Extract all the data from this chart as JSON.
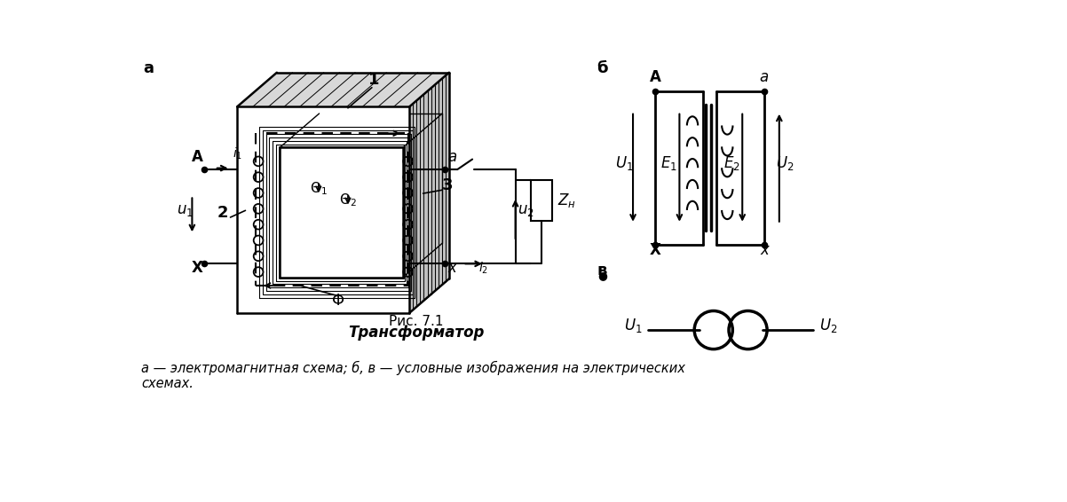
{
  "bg_color": "#ffffff",
  "title1": "Рис. 7.1",
  "title2": "Трансформатор",
  "caption": "а — электромагнитная схема; б, в — условные изображения на электрических\nсхемах."
}
